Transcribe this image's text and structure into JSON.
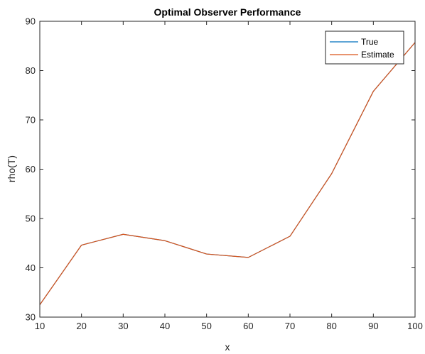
{
  "chart_data": {
    "type": "line",
    "title": "Optimal Observer Performance",
    "xlabel": "x",
    "ylabel": "rho(T)",
    "xlim": [
      10,
      100
    ],
    "ylim": [
      30,
      90
    ],
    "x_ticks": [
      10,
      20,
      30,
      40,
      50,
      60,
      70,
      80,
      90,
      100
    ],
    "y_ticks": [
      30,
      40,
      50,
      60,
      70,
      80,
      90
    ],
    "grid": false,
    "legend_position": "top-right",
    "x": [
      10,
      20,
      30,
      40,
      50,
      60,
      70,
      80,
      90,
      100
    ],
    "series": [
      {
        "name": "True",
        "color": "#0072BD",
        "values": [
          32.5,
          44.6,
          46.8,
          45.5,
          42.8,
          42.1,
          46.4,
          59.1,
          75.8,
          85.7
        ]
      },
      {
        "name": "Estimate",
        "color": "#D95319",
        "values": [
          32.5,
          44.6,
          46.8,
          45.5,
          42.8,
          42.1,
          46.4,
          59.1,
          75.8,
          85.7
        ]
      }
    ]
  }
}
